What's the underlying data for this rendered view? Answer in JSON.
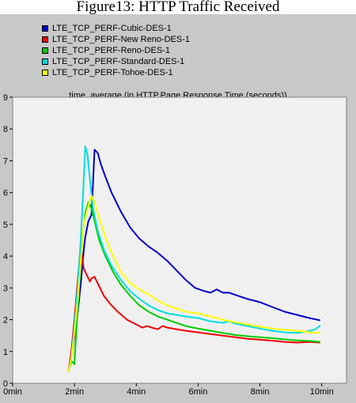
{
  "caption": "Figure13: HTTP Traffic Received",
  "chart_data": {
    "type": "line",
    "title": "time_average (in HTTP.Page Response Time (seconds))",
    "xlabel": "",
    "ylabel": "",
    "xlim": [
      0,
      10.8
    ],
    "ylim": [
      0,
      9
    ],
    "x_ticks": [
      {
        "value": 0,
        "label": "0min"
      },
      {
        "value": 2,
        "label": "2min"
      },
      {
        "value": 4,
        "label": "4min"
      },
      {
        "value": 6,
        "label": "6min"
      },
      {
        "value": 8,
        "label": "8min"
      },
      {
        "value": 10,
        "label": "10min"
      }
    ],
    "y_ticks": [
      {
        "value": 0,
        "label": "0"
      },
      {
        "value": 1,
        "label": "1"
      },
      {
        "value": 2,
        "label": "2"
      },
      {
        "value": 3,
        "label": "3"
      },
      {
        "value": 4,
        "label": "4"
      },
      {
        "value": 5,
        "label": "5"
      },
      {
        "value": 6,
        "label": "6"
      },
      {
        "value": 7,
        "label": "7"
      },
      {
        "value": 8,
        "label": "8"
      },
      {
        "value": 9,
        "label": "9"
      }
    ],
    "grid": false,
    "legend_position": "top-left",
    "series": [
      {
        "name": "LTE_TCP_PERF-Cubic-DES-1",
        "color": "#0000cc",
        "points": [
          [
            1.8,
            0.35
          ],
          [
            1.9,
            0.8
          ],
          [
            2.0,
            1.5
          ],
          [
            2.1,
            2.2
          ],
          [
            2.2,
            3.1
          ],
          [
            2.3,
            4.2
          ],
          [
            2.35,
            4.6
          ],
          [
            2.45,
            5.1
          ],
          [
            2.55,
            5.3
          ],
          [
            2.6,
            6.3
          ],
          [
            2.65,
            7.35
          ],
          [
            2.75,
            7.25
          ],
          [
            2.85,
            6.9
          ],
          [
            3.0,
            6.5
          ],
          [
            3.2,
            6.0
          ],
          [
            3.5,
            5.4
          ],
          [
            3.8,
            4.9
          ],
          [
            4.1,
            4.55
          ],
          [
            4.4,
            4.3
          ],
          [
            4.7,
            4.1
          ],
          [
            5.0,
            3.85
          ],
          [
            5.3,
            3.55
          ],
          [
            5.6,
            3.25
          ],
          [
            5.9,
            3.0
          ],
          [
            6.2,
            2.9
          ],
          [
            6.4,
            2.85
          ],
          [
            6.6,
            2.95
          ],
          [
            6.8,
            2.85
          ],
          [
            7.0,
            2.85
          ],
          [
            7.3,
            2.75
          ],
          [
            7.6,
            2.65
          ],
          [
            8.0,
            2.55
          ],
          [
            8.4,
            2.4
          ],
          [
            8.8,
            2.25
          ],
          [
            9.2,
            2.15
          ],
          [
            9.6,
            2.05
          ],
          [
            9.95,
            1.98
          ]
        ]
      },
      {
        "name": "LTE_TCP_PERF-New Reno-DES-1",
        "color": "#ee0000",
        "points": [
          [
            1.8,
            0.35
          ],
          [
            1.9,
            1.0
          ],
          [
            2.0,
            2.0
          ],
          [
            2.1,
            3.2
          ],
          [
            2.2,
            4.3
          ],
          [
            2.25,
            4.0
          ],
          [
            2.3,
            3.6
          ],
          [
            2.4,
            3.4
          ],
          [
            2.5,
            3.2
          ],
          [
            2.55,
            3.3
          ],
          [
            2.65,
            3.35
          ],
          [
            2.8,
            3.05
          ],
          [
            2.95,
            2.75
          ],
          [
            3.15,
            2.5
          ],
          [
            3.4,
            2.25
          ],
          [
            3.7,
            2.0
          ],
          [
            4.0,
            1.85
          ],
          [
            4.2,
            1.75
          ],
          [
            4.35,
            1.8
          ],
          [
            4.5,
            1.75
          ],
          [
            4.7,
            1.7
          ],
          [
            4.85,
            1.8
          ],
          [
            5.0,
            1.75
          ],
          [
            5.3,
            1.7
          ],
          [
            5.6,
            1.65
          ],
          [
            6.0,
            1.6
          ],
          [
            6.4,
            1.55
          ],
          [
            6.8,
            1.5
          ],
          [
            7.2,
            1.45
          ],
          [
            7.6,
            1.4
          ],
          [
            8.0,
            1.37
          ],
          [
            8.4,
            1.34
          ],
          [
            8.8,
            1.3
          ],
          [
            9.2,
            1.28
          ],
          [
            9.6,
            1.3
          ],
          [
            9.95,
            1.28
          ]
        ]
      },
      {
        "name": "LTE_TCP_PERF-Reno-DES-1",
        "color": "#00cc00",
        "points": [
          [
            1.8,
            0.35
          ],
          [
            1.9,
            0.7
          ],
          [
            2.0,
            0.6
          ],
          [
            2.05,
            1.5
          ],
          [
            2.15,
            3.0
          ],
          [
            2.25,
            4.5
          ],
          [
            2.35,
            5.35
          ],
          [
            2.45,
            5.7
          ],
          [
            2.55,
            5.5
          ],
          [
            2.65,
            5.1
          ],
          [
            2.8,
            4.5
          ],
          [
            3.0,
            4.0
          ],
          [
            3.25,
            3.5
          ],
          [
            3.5,
            3.1
          ],
          [
            3.8,
            2.75
          ],
          [
            4.1,
            2.45
          ],
          [
            4.4,
            2.25
          ],
          [
            4.7,
            2.1
          ],
          [
            5.0,
            2.0
          ],
          [
            5.3,
            1.9
          ],
          [
            5.6,
            1.8
          ],
          [
            6.0,
            1.72
          ],
          [
            6.4,
            1.65
          ],
          [
            6.8,
            1.58
          ],
          [
            7.2,
            1.52
          ],
          [
            7.6,
            1.48
          ],
          [
            8.0,
            1.45
          ],
          [
            8.4,
            1.42
          ],
          [
            8.8,
            1.38
          ],
          [
            9.2,
            1.35
          ],
          [
            9.6,
            1.33
          ],
          [
            9.95,
            1.3
          ]
        ]
      },
      {
        "name": "LTE_TCP_PERF-Standard-DES-1",
        "color": "#00dddd",
        "points": [
          [
            1.8,
            0.35
          ],
          [
            1.9,
            0.8
          ],
          [
            2.0,
            1.8
          ],
          [
            2.1,
            3.0
          ],
          [
            2.2,
            4.5
          ],
          [
            2.28,
            6.0
          ],
          [
            2.35,
            7.45
          ],
          [
            2.42,
            7.2
          ],
          [
            2.5,
            6.4
          ],
          [
            2.6,
            5.5
          ],
          [
            2.75,
            4.8
          ],
          [
            2.95,
            4.2
          ],
          [
            3.2,
            3.7
          ],
          [
            3.5,
            3.25
          ],
          [
            3.8,
            2.9
          ],
          [
            4.1,
            2.65
          ],
          [
            4.4,
            2.45
          ],
          [
            4.7,
            2.3
          ],
          [
            5.0,
            2.2
          ],
          [
            5.3,
            2.15
          ],
          [
            5.6,
            2.1
          ],
          [
            6.0,
            2.05
          ],
          [
            6.4,
            1.95
          ],
          [
            6.8,
            1.9
          ],
          [
            7.0,
            1.95
          ],
          [
            7.2,
            1.88
          ],
          [
            7.6,
            1.8
          ],
          [
            8.0,
            1.72
          ],
          [
            8.4,
            1.65
          ],
          [
            8.8,
            1.6
          ],
          [
            9.2,
            1.58
          ],
          [
            9.5,
            1.62
          ],
          [
            9.8,
            1.7
          ],
          [
            9.95,
            1.82
          ]
        ]
      },
      {
        "name": "LTE_TCP_PERF-Tohoe-DES-1",
        "color": "#ffff00",
        "points": [
          [
            1.8,
            0.35
          ],
          [
            1.9,
            0.8
          ],
          [
            2.0,
            1.6
          ],
          [
            2.1,
            2.6
          ],
          [
            2.2,
            3.8
          ],
          [
            2.3,
            5.0
          ],
          [
            2.45,
            5.6
          ],
          [
            2.55,
            5.9
          ],
          [
            2.65,
            5.7
          ],
          [
            2.8,
            5.2
          ],
          [
            3.0,
            4.6
          ],
          [
            3.25,
            4.0
          ],
          [
            3.5,
            3.5
          ],
          [
            3.8,
            3.15
          ],
          [
            4.1,
            2.95
          ],
          [
            4.4,
            2.8
          ],
          [
            4.7,
            2.6
          ],
          [
            5.0,
            2.45
          ],
          [
            5.3,
            2.35
          ],
          [
            5.6,
            2.25
          ],
          [
            6.0,
            2.2
          ],
          [
            6.4,
            2.1
          ],
          [
            6.8,
            2.0
          ],
          [
            7.2,
            1.92
          ],
          [
            7.6,
            1.85
          ],
          [
            8.0,
            1.78
          ],
          [
            8.4,
            1.72
          ],
          [
            8.8,
            1.68
          ],
          [
            9.2,
            1.65
          ],
          [
            9.6,
            1.6
          ],
          [
            9.95,
            1.58
          ]
        ]
      }
    ]
  }
}
